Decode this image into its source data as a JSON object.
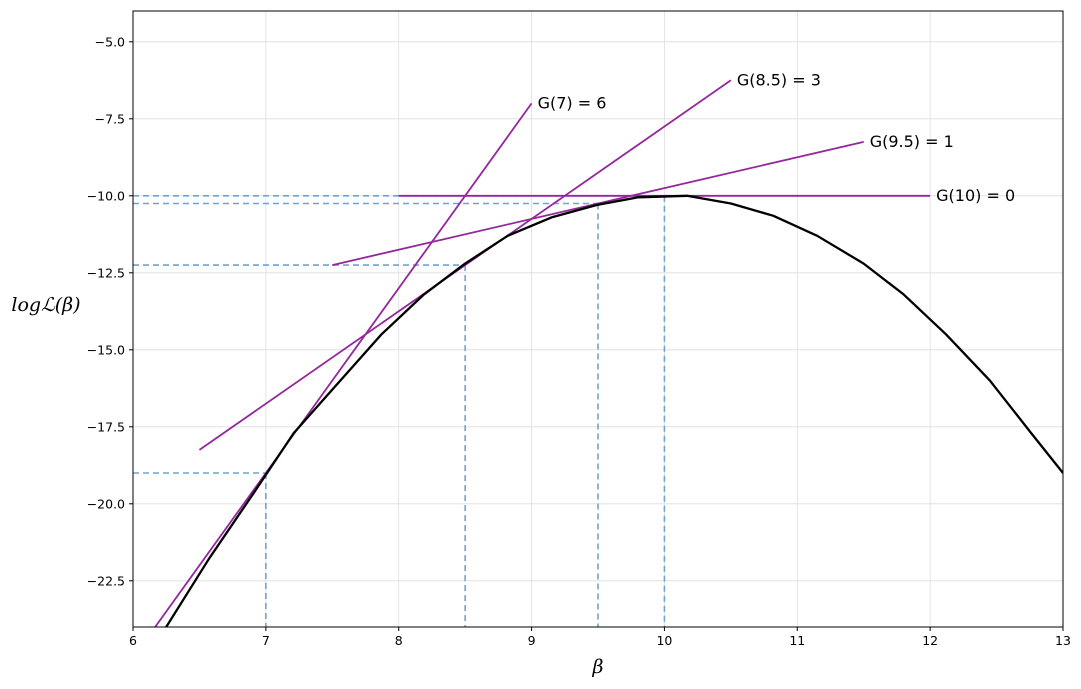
{
  "chart_data": {
    "type": "line",
    "title": "",
    "xlabel": "β",
    "ylabel": "logℒ(β)",
    "xlim": [
      6,
      13
    ],
    "ylim": [
      -24,
      -4
    ],
    "grid": true,
    "xticks": [
      6,
      7,
      8,
      9,
      10,
      11,
      12,
      13
    ],
    "xtick_labels": [
      "6",
      "7",
      "8",
      "9",
      "10",
      "11",
      "12",
      "13"
    ],
    "yticks": [
      -5.0,
      -7.5,
      -10.0,
      -12.5,
      -15.0,
      -17.5,
      -20.0,
      -22.5
    ],
    "ytick_labels": [
      "−5.0",
      "−7.5",
      "−10.0",
      "−12.5",
      "−15.0",
      "−17.5",
      "−20.0",
      "−22.5"
    ],
    "colors": {
      "curve": "#000000",
      "tangent": "#93279b",
      "guide": "#6fa3d0",
      "grid": "#dedede"
    },
    "series": [
      {
        "x": [
          6,
          6.25,
          6.57,
          6.9,
          7.21,
          7.56,
          7.87,
          8.19,
          8.5,
          8.82,
          9.15,
          9.49,
          9.8,
          10.17,
          10.5,
          10.82,
          11.15,
          11.5,
          11.8,
          12.12,
          12.45,
          12.76,
          13.0
        ],
        "y": [
          -24.5,
          -24.0,
          -21.8,
          -19.7,
          -17.7,
          -16.0,
          -14.5,
          -13.2,
          -12.2,
          -11.3,
          -10.7,
          -10.3,
          -10.05,
          -10.0,
          -10.25,
          -10.65,
          -11.3,
          -12.2,
          -13.2,
          -14.5,
          -16.0,
          -17.7,
          -19.0
        ]
      }
    ],
    "tangents": [
      {
        "label": "G(7) = 6",
        "x0": 7,
        "y0": -19,
        "slope": 6,
        "x_start": 6.15,
        "x_end": 9.0
      },
      {
        "label": "G(8.5) = 3",
        "x0": 8.5,
        "y0": -12.25,
        "slope": 3,
        "x_start": 6.5,
        "x_end": 10.5
      },
      {
        "label": "G(9.5) = 1",
        "x0": 9.5,
        "y0": -10.25,
        "slope": 1,
        "x_start": 7.5,
        "x_end": 11.5
      },
      {
        "label": "G(10) = 0",
        "x0": 10,
        "y0": -10.0,
        "slope": 0,
        "x_start": 8.0,
        "x_end": 12.0
      }
    ],
    "guide_points": [
      {
        "x": 7,
        "y": -19.0
      },
      {
        "x": 8.5,
        "y": -12.25
      },
      {
        "x": 9.5,
        "y": -10.25
      },
      {
        "x": 10,
        "y": -10.0
      }
    ]
  }
}
